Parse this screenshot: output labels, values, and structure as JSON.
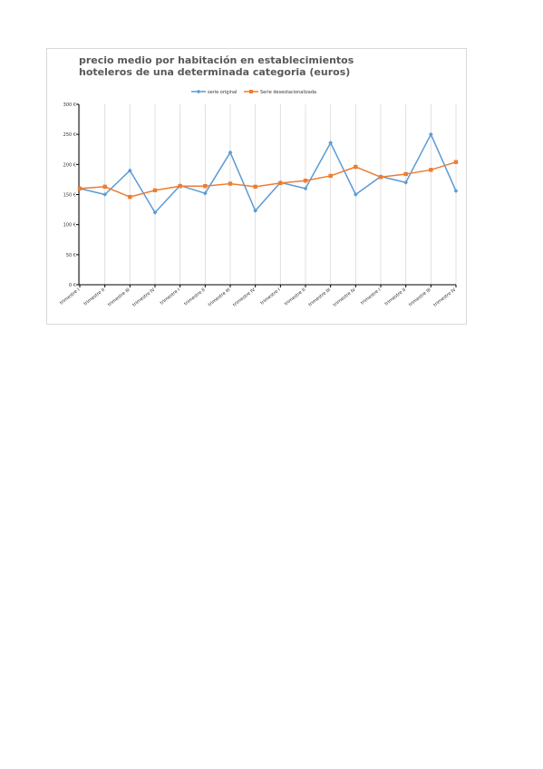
{
  "chart_data": {
    "type": "line",
    "title": "precio medio por habitación en establecimientos hoteleros de una determinada categoria  (euros)",
    "categories": [
      "trimestre I",
      "trimestre II",
      "trimestre III",
      "trimestre IV",
      "trimestre I",
      "trimestre II",
      "trimestre III",
      "trimestre IV",
      "trimestre I",
      "trimestre II",
      "trimestre III",
      "trimestre IV",
      "trimestre I",
      "trimestre II",
      "trimestre III",
      "trimestre IV"
    ],
    "series": [
      {
        "name": "serie original",
        "color": "#5b9bd5",
        "values": [
          160,
          150,
          190,
          120,
          165,
          152,
          220,
          123,
          170,
          160,
          236,
          150,
          180,
          170,
          250,
          156
        ]
      },
      {
        "name": "Serie desestacionalizada",
        "color": "#ed7d31",
        "values": [
          160,
          163,
          146,
          157,
          164,
          164,
          168,
          163,
          169,
          173,
          181,
          196,
          179,
          184,
          191,
          204
        ]
      }
    ],
    "yticks": [
      "0 €",
      "50 €",
      "100 €",
      "150 €",
      "200 €",
      "250 €",
      "300 €"
    ],
    "ylim": [
      0,
      300
    ],
    "grid": "vertical",
    "legend": "top"
  }
}
